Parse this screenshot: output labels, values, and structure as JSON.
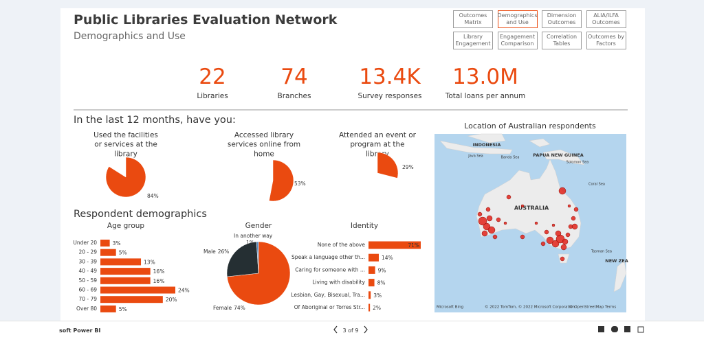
{
  "header": {
    "title": "Public Libraries Evaluation Network",
    "subtitle": "Demographics and Use"
  },
  "nav": [
    "Outcomes Matrix",
    "Demographics and Use",
    "Dimension Outcomes",
    "ALIA/ILFA Outcomes",
    "Library Engagement",
    "Engagement Comparison",
    "Correlation Tables",
    "Outcomes by Factors"
  ],
  "kpis": [
    {
      "value": "22",
      "label": "Libraries"
    },
    {
      "value": "74",
      "label": "Branches"
    },
    {
      "value": "13.4K",
      "label": "Survey responses"
    },
    {
      "value": "13.0M",
      "label": "Total loans per annum"
    }
  ],
  "sections": [
    "In the last 12 months, have you:",
    "Respondent demographics"
  ],
  "chart_data": [
    {
      "type": "pie",
      "title": "Used the facilities or services at the library",
      "values": [
        84
      ],
      "value_labels": [
        "84%"
      ],
      "colors": [
        "#ea4a10"
      ]
    },
    {
      "type": "pie",
      "title": "Accessed library services online from home",
      "values": [
        53
      ],
      "value_labels": [
        "53%"
      ],
      "colors": [
        "#ea4a10"
      ]
    },
    {
      "type": "pie",
      "title": "Attended an event or program at the library",
      "values": [
        29
      ],
      "value_labels": [
        "29%"
      ],
      "colors": [
        "#ea4a10"
      ]
    },
    {
      "type": "bar",
      "title": "Age group",
      "categories": [
        "Under 20",
        "20 - 29",
        "30 - 39",
        "40 - 49",
        "50 - 59",
        "60 - 69",
        "70 - 79",
        "Over 80"
      ],
      "values": [
        3,
        5,
        13,
        16,
        16,
        24,
        20,
        5
      ],
      "value_labels": [
        "3%",
        "5%",
        "13%",
        "16%",
        "16%",
        "24%",
        "20%",
        "5%"
      ],
      "color": "#ea4a10"
    },
    {
      "type": "pie",
      "title": "Gender",
      "categories": [
        "Female",
        "Male",
        "In another way"
      ],
      "values": [
        74,
        26,
        1
      ],
      "value_labels": [
        "74%",
        "26%",
        "1%"
      ],
      "colors": [
        "#ea4a10",
        "#252f33",
        "#5a8fc2"
      ]
    },
    {
      "type": "bar",
      "title": "Identity",
      "categories": [
        "None of the above",
        "Speak a language other th...",
        "Caring for someone with ...",
        "Living with disability",
        "Lesbian, Gay, Bisexual, Tra...",
        "Of Aboriginal or Torres Str..."
      ],
      "values": [
        71,
        14,
        9,
        8,
        3,
        2
      ],
      "value_labels": [
        "71%",
        "14%",
        "9%",
        "8%",
        "3%",
        "2%"
      ],
      "color": "#ea4a10"
    }
  ],
  "map": {
    "title": "Location of Australian respondents",
    "labels": [
      "INDONESIA",
      "Java Sea",
      "Banda Sea",
      "PAPUA NEW GUINEA",
      "Solomon Sea",
      "Coral Sea",
      "AUSTRALIA",
      "Tasman Sea",
      "NEW ZEA"
    ],
    "attribution": [
      "Microsoft Bing",
      "© 2022 TomTom, © 2022 Microsoft Corporation",
      "© OpenStreetMap",
      "Terms"
    ]
  },
  "footer": {
    "brand": "soft Power BI",
    "page": "3 of 9"
  }
}
